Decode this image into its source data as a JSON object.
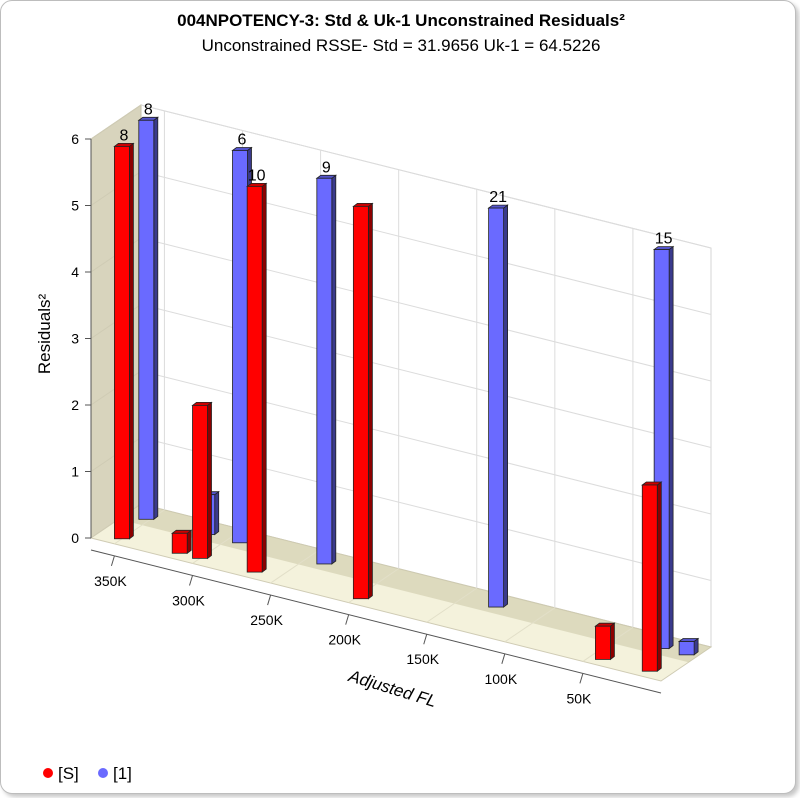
{
  "chart_data": {
    "type": "bar",
    "title": "004NPOTENCY-3:  Std & Uk-1  Unconstrained Residuals²",
    "subtitle": "Unconstrained RSSE- Std = 31.9656  Uk-1 = 64.5226",
    "xlabel": "Adjusted FL",
    "ylabel": "Residuals²",
    "ylim": [
      0,
      6
    ],
    "y_ticks": [
      "0",
      "1",
      "2",
      "3",
      "4",
      "5",
      "6"
    ],
    "x_ticks": [
      "350K",
      "300K",
      "250K",
      "200K",
      "150K",
      "100K",
      "50K"
    ],
    "x_tick_values": [
      350000,
      300000,
      250000,
      200000,
      150000,
      100000,
      50000
    ],
    "xlim": [
      365000,
      0
    ],
    "grid": true,
    "legend_position": "bottom-left",
    "series": [
      {
        "name": "[S]",
        "color": "#ff0000",
        "bars": [
          {
            "x": 350000,
            "value": 5.9,
            "label": "8"
          },
          {
            "x": 313000,
            "value": 0.3,
            "label": ""
          },
          {
            "x": 300000,
            "value": 2.3,
            "label": ""
          },
          {
            "x": 265000,
            "value": 5.8,
            "label": "10"
          },
          {
            "x": 197000,
            "value": 5.9,
            "label": ""
          },
          {
            "x": 42000,
            "value": 0.5,
            "label": ""
          },
          {
            "x": 12000,
            "value": 2.8,
            "label": ""
          }
        ]
      },
      {
        "name": "[1]",
        "color": "#6a6aff",
        "bars": [
          {
            "x": 352000,
            "value": 6.0,
            "label": "8"
          },
          {
            "x": 313000,
            "value": 0.6,
            "label": ""
          },
          {
            "x": 292000,
            "value": 5.9,
            "label": "6"
          },
          {
            "x": 238000,
            "value": 5.8,
            "label": "9"
          },
          {
            "x": 128000,
            "value": 6.0,
            "label": "21"
          },
          {
            "x": 22000,
            "value": 6.0,
            "label": "15"
          },
          {
            "x": 6000,
            "value": 0.2,
            "label": ""
          }
        ]
      }
    ]
  }
}
